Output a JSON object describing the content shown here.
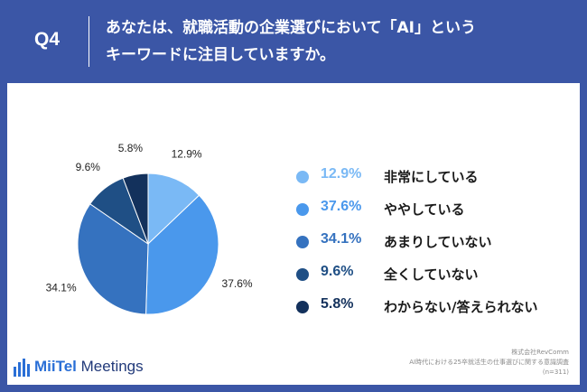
{
  "header": {
    "q_label": "Q4",
    "question_line1": "あなたは、就職活動の企業選びにおいて「AI」という",
    "question_line2": "キーワードに注目していますか。"
  },
  "chart_data": {
    "type": "pie",
    "slices": [
      {
        "label": "非常にしている",
        "value": 12.9,
        "display": "12.9%",
        "color": "#7ab9f5"
      },
      {
        "label": "ややしている",
        "value": 37.6,
        "display": "37.6%",
        "color": "#4a98ec"
      },
      {
        "label": "あまりしていない",
        "value": 34.1,
        "display": "34.1%",
        "color": "#3572bf"
      },
      {
        "label": "全くしていない",
        "value": 9.6,
        "display": "9.6%",
        "color": "#1f4f85"
      },
      {
        "label": "わからない/答えられない",
        "value": 5.8,
        "display": "5.8%",
        "color": "#13315c"
      }
    ],
    "legend_placement": "right"
  },
  "footer": {
    "logo_brand": "MiiTel",
    "logo_product": " Meetings",
    "source_company": "株式会社RevComm",
    "source_survey": "AI時代における25卒就活生の仕事選びに関する意識調査",
    "source_n": "(n=311)"
  }
}
